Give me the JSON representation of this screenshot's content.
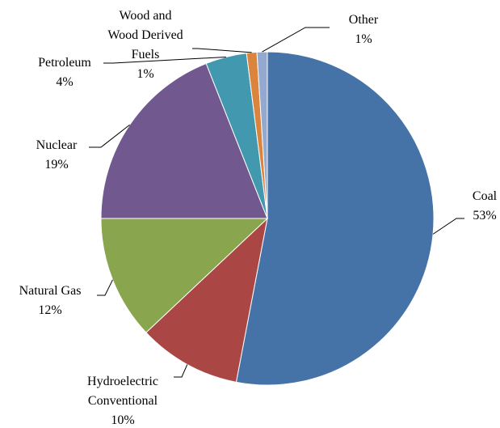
{
  "chart_data": {
    "type": "pie",
    "categories": [
      "Coal",
      "Hydroelectric Conventional",
      "Natural Gas",
      "Nuclear",
      "Petroleum",
      "Wood and Wood Derived Fuels",
      "Other"
    ],
    "values": [
      53,
      10,
      12,
      19,
      4,
      1,
      1
    ],
    "value_labels": [
      "53%",
      "10%",
      "12%",
      "19%",
      "4%",
      "1%",
      "1%"
    ],
    "colors": [
      "#4572a7",
      "#aa4643",
      "#89a54e",
      "#71588f",
      "#4198af",
      "#db843d",
      "#93a9cf"
    ]
  }
}
